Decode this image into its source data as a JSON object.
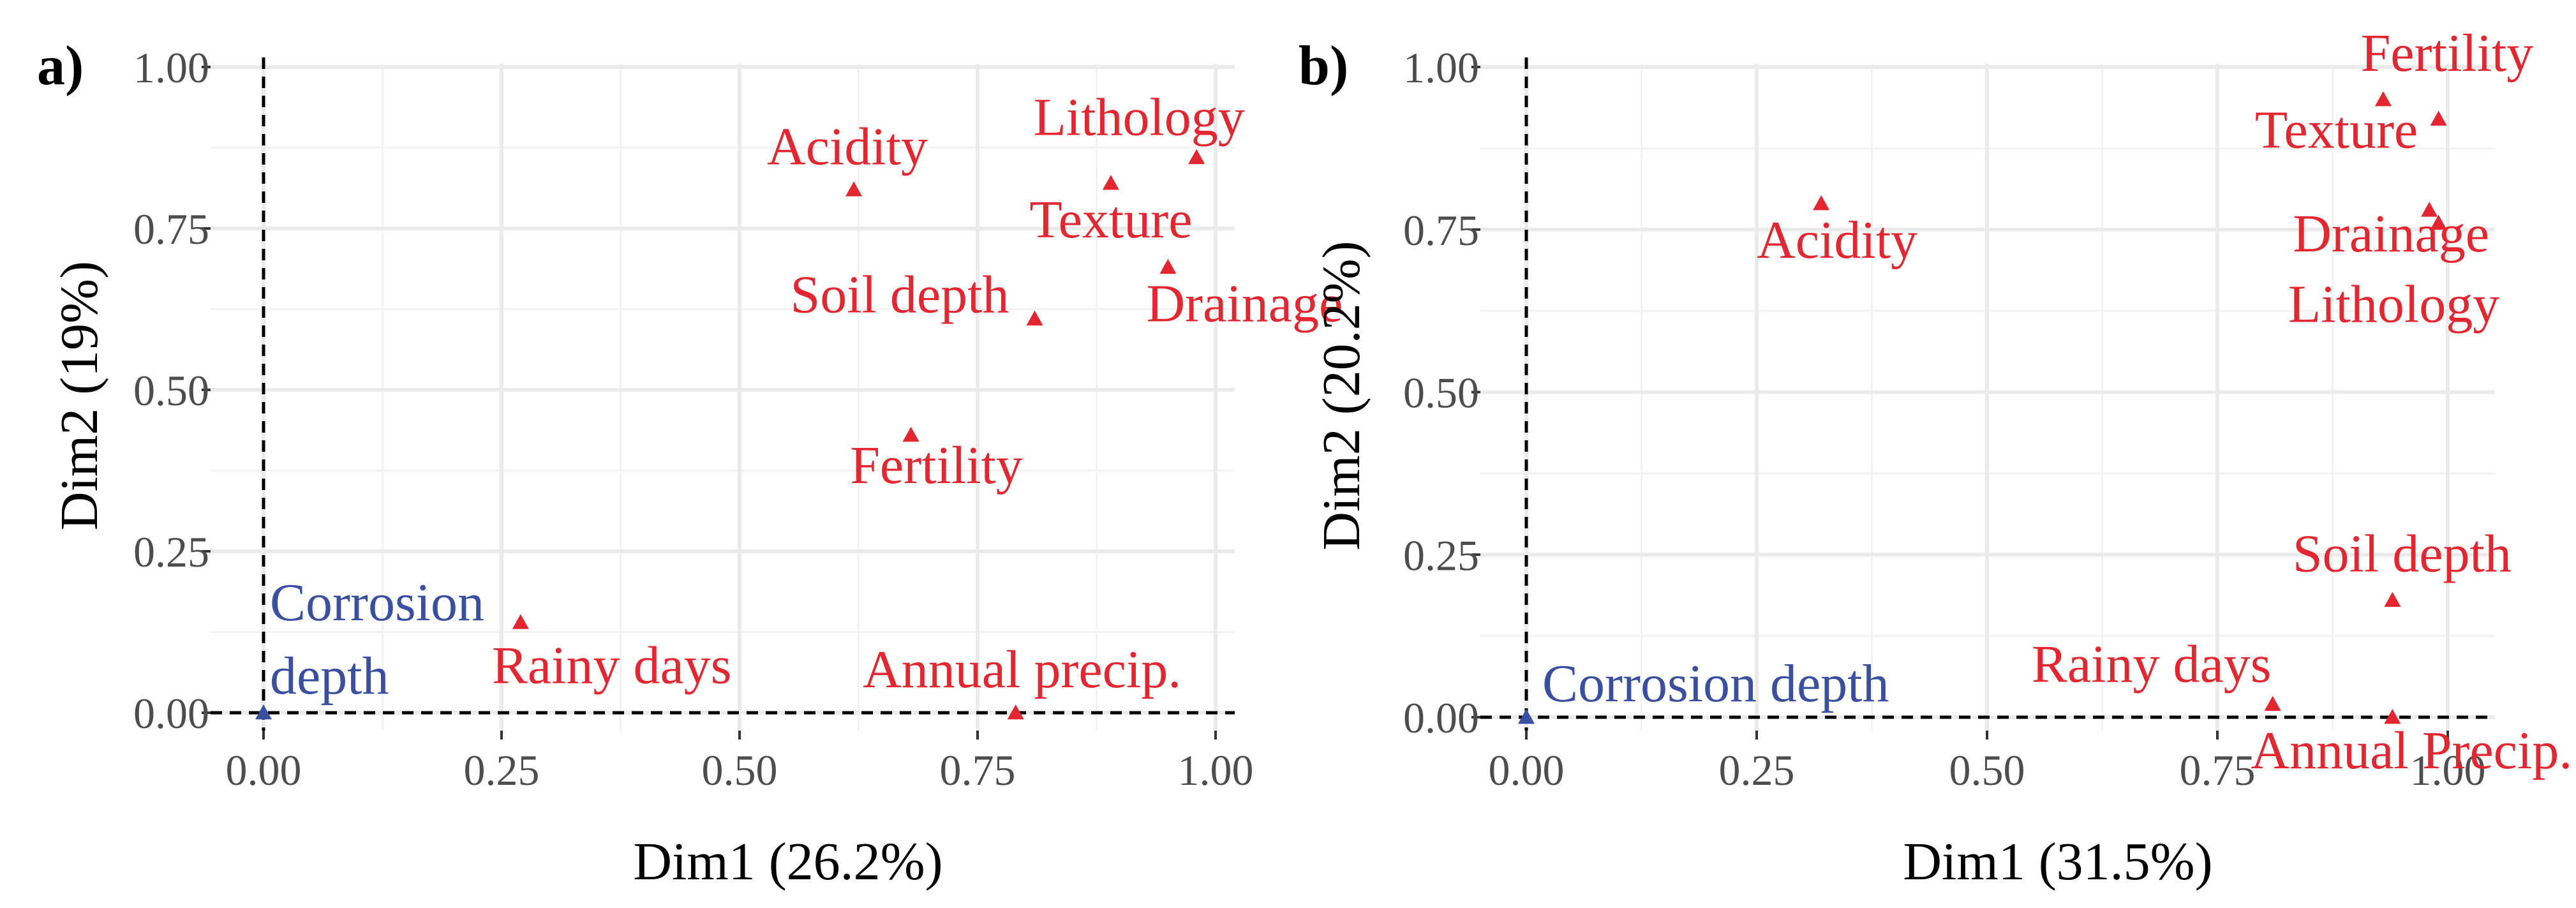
{
  "chart_data": [
    {
      "type": "scatter",
      "panel_label": "a)",
      "xlabel": "Dim1 (26.2%)",
      "ylabel": "Dim2 (19%)",
      "xlim": [
        -0.05,
        1.03
      ],
      "ylim": [
        -0.03,
        1.0
      ],
      "xticks": [
        0.0,
        0.25,
        0.5,
        0.75,
        1.0
      ],
      "yticks": [
        0.0,
        0.25,
        0.5,
        0.75,
        1.0
      ],
      "tick_labels": [
        "0.00",
        "0.25",
        "0.50",
        "0.75",
        "1.00"
      ],
      "grid": true,
      "reference_lines": {
        "x": 0,
        "y": 0
      },
      "colors": {
        "supplementary": "#3a4fa0",
        "active": "#e3262f"
      },
      "points": [
        {
          "label": "Corrosion",
          "label2": "depth",
          "x": 0.0,
          "y": 0.0,
          "group": "supplementary",
          "marker": "triangle"
        },
        {
          "label": "Rainy days",
          "x": 0.27,
          "y": 0.14,
          "group": "active",
          "marker": "triangle"
        },
        {
          "label": "Annual precip.",
          "x": 0.79,
          "y": 0.0,
          "group": "active",
          "marker": "triangle"
        },
        {
          "label": "Fertility",
          "x": 0.68,
          "y": 0.43,
          "group": "active",
          "marker": "triangle"
        },
        {
          "label": "Soil depth",
          "x": 0.81,
          "y": 0.61,
          "group": "active",
          "marker": "triangle"
        },
        {
          "label": "Acidity",
          "x": 0.62,
          "y": 0.81,
          "group": "active",
          "marker": "triangle"
        },
        {
          "label": "Texture",
          "x": 0.89,
          "y": 0.82,
          "group": "active",
          "marker": "triangle"
        },
        {
          "label": "Drainage",
          "x": 0.95,
          "y": 0.69,
          "group": "active",
          "marker": "triangle"
        },
        {
          "label": "Lithology",
          "x": 0.98,
          "y": 0.86,
          "group": "active",
          "marker": "triangle"
        }
      ]
    },
    {
      "type": "scatter",
      "panel_label": "b)",
      "xlabel": "Dim1 (31.5%)",
      "ylabel": "Dim2 (20.2%)",
      "xlim": [
        -0.05,
        1.05
      ],
      "ylim": [
        -0.03,
        1.0
      ],
      "xticks": [
        0.0,
        0.25,
        0.5,
        0.75,
        1.0
      ],
      "yticks": [
        0.0,
        0.25,
        0.5,
        0.75,
        1.0
      ],
      "tick_labels": [
        "0.00",
        "0.25",
        "0.50",
        "0.75",
        "1.00"
      ],
      "grid": true,
      "reference_lines": {
        "x": 0,
        "y": 0
      },
      "colors": {
        "supplementary": "#3a4fa0",
        "active": "#e3262f"
      },
      "points": [
        {
          "label": "Corrosion depth",
          "x": 0.0,
          "y": 0.0,
          "group": "supplementary",
          "marker": "triangle"
        },
        {
          "label": "Rainy days",
          "x": 0.81,
          "y": 0.02,
          "group": "active",
          "marker": "triangle"
        },
        {
          "label": "Annual Precip.",
          "x": 0.94,
          "y": 0.0,
          "group": "active",
          "marker": "triangle"
        },
        {
          "label": "Soil depth",
          "x": 0.94,
          "y": 0.18,
          "group": "active",
          "marker": "triangle"
        },
        {
          "label": "Acidity",
          "x": 0.32,
          "y": 0.79,
          "group": "active",
          "marker": "triangle"
        },
        {
          "label": "Fertility",
          "x": 0.93,
          "y": 0.95,
          "group": "active",
          "marker": "triangle"
        },
        {
          "label": "Texture",
          "x": 0.99,
          "y": 0.92,
          "group": "active",
          "marker": "triangle"
        },
        {
          "label": "Drainage",
          "x": 0.98,
          "y": 0.78,
          "group": "active",
          "marker": "triangle"
        },
        {
          "label": "Lithology",
          "x": 0.99,
          "y": 0.76,
          "group": "active",
          "marker": "triangle"
        }
      ]
    }
  ]
}
